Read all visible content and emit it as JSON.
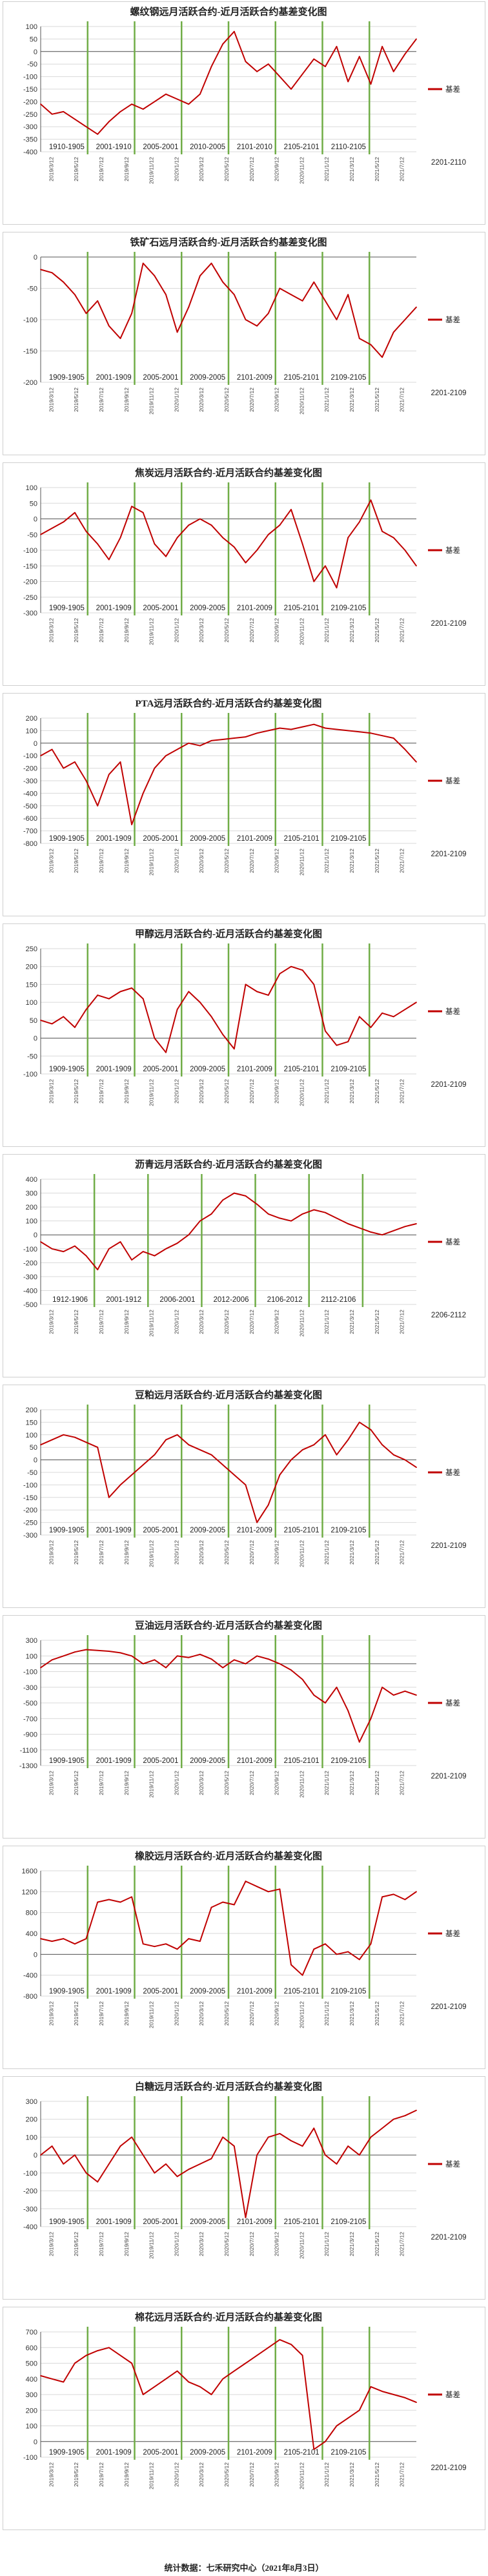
{
  "colors": {
    "series": "#c00000",
    "marker": "#70ad47",
    "grid": "#d9d9d9",
    "axis": "#555555"
  },
  "footer": "统计数据：七禾研究中心（2021年8月3日）",
  "chart_data": [
    {
      "type": "line",
      "title": "螺纹钢远月活跃合约-近月活跃合约基差变化图",
      "legend": "基差",
      "ylim": [
        -400,
        100
      ],
      "ystep": 50,
      "ylabels": [
        "-400",
        "-350",
        "-300",
        "-250",
        "-200",
        "-150",
        "-100",
        "-50",
        "0",
        "50",
        "100"
      ],
      "periods": [
        "1910-1905",
        "2001-1910",
        "2005-2001",
        "2010-2005",
        "2101-2010",
        "2105-2101",
        "2110-2105"
      ],
      "tail_label": "2201-2110",
      "x_dates": [
        "2019/3/12",
        "2019/5/12",
        "2019/7/12",
        "2019/9/12",
        "2019/11/12",
        "2020/1/12",
        "2020/3/12",
        "2020/5/12",
        "2020/7/12",
        "2020/9/12",
        "2020/11/12",
        "2021/1/12",
        "2021/3/12",
        "2021/5/12",
        "2021/7/12"
      ],
      "x": [
        0,
        3,
        6,
        9,
        12,
        15,
        18,
        21,
        24,
        27,
        30,
        33,
        36,
        39,
        42,
        45,
        48,
        51,
        54,
        57,
        60,
        63,
        66,
        69,
        72,
        75,
        78,
        81,
        84,
        87,
        90,
        93,
        96,
        99
      ],
      "values": [
        -210,
        -250,
        -240,
        -270,
        -300,
        -330,
        -280,
        -240,
        -210,
        -230,
        -200,
        -170,
        -190,
        -210,
        -170,
        -60,
        30,
        80,
        -40,
        -80,
        -50,
        -100,
        -150,
        -90,
        -30,
        -60,
        20,
        -120,
        -20,
        -130,
        20,
        -80,
        -10,
        50
      ]
    },
    {
      "type": "line",
      "title": "铁矿石远月活跃合约-近月活跃合约基差变化图",
      "legend": "基差",
      "ylim": [
        -200,
        0
      ],
      "ystep": 50,
      "ylabels": [
        "-200",
        "-150",
        "-100",
        "-50",
        "0"
      ],
      "periods": [
        "1909-1905",
        "2001-1909",
        "2005-2001",
        "2009-2005",
        "2101-2009",
        "2105-2101",
        "2109-2105"
      ],
      "tail_label": "2201-2109",
      "x_dates": [
        "2019/3/12",
        "2019/5/12",
        "2019/7/12",
        "2019/9/12",
        "2019/11/12",
        "2020/1/12",
        "2020/3/12",
        "2020/5/12",
        "2020/7/12",
        "2020/9/12",
        "2020/11/12",
        "2021/1/12",
        "2021/3/12",
        "2021/5/12",
        "2021/7/12"
      ],
      "x": [
        0,
        3,
        6,
        9,
        12,
        15,
        18,
        21,
        24,
        27,
        30,
        33,
        36,
        39,
        42,
        45,
        48,
        51,
        54,
        57,
        60,
        63,
        66,
        69,
        72,
        75,
        78,
        81,
        84,
        87,
        90,
        93,
        96,
        99
      ],
      "values": [
        -20,
        -25,
        -40,
        -60,
        -90,
        -70,
        -110,
        -130,
        -90,
        -10,
        -30,
        -60,
        -120,
        -80,
        -30,
        -10,
        -40,
        -60,
        -100,
        -110,
        -90,
        -50,
        -60,
        -70,
        -40,
        -70,
        -100,
        -60,
        -130,
        -140,
        -160,
        -120,
        -100,
        -80
      ]
    },
    {
      "type": "line",
      "title": "焦炭远月活跃合约-近月活跃合约基差变化图",
      "legend": "基差",
      "ylim": [
        -300,
        100
      ],
      "ystep": 50,
      "ylabels": [
        "-300",
        "-250",
        "-200",
        "-150",
        "-100",
        "-50",
        "0",
        "50",
        "100"
      ],
      "periods": [
        "1909-1905",
        "2001-1909",
        "2005-2001",
        "2009-2005",
        "2101-2009",
        "2105-2101",
        "2109-2105"
      ],
      "tail_label": "2201-2109",
      "x_dates": [
        "2019/3/12",
        "2019/5/12",
        "2019/7/12",
        "2019/9/12",
        "2019/11/12",
        "2020/1/12",
        "2020/3/12",
        "2020/5/12",
        "2020/7/12",
        "2020/9/12",
        "2020/11/12",
        "2021/1/12",
        "2021/3/12",
        "2021/5/12",
        "2021/7/12"
      ],
      "x": [
        0,
        3,
        6,
        9,
        12,
        15,
        18,
        21,
        24,
        27,
        30,
        33,
        36,
        39,
        42,
        45,
        48,
        51,
        54,
        57,
        60,
        63,
        66,
        69,
        72,
        75,
        78,
        81,
        84,
        87,
        90,
        93,
        96,
        99
      ],
      "values": [
        -50,
        -30,
        -10,
        20,
        -40,
        -80,
        -130,
        -60,
        40,
        20,
        -80,
        -120,
        -60,
        -20,
        0,
        -20,
        -60,
        -90,
        -140,
        -100,
        -50,
        -20,
        30,
        -80,
        -200,
        -150,
        -220,
        -60,
        -10,
        60,
        -40,
        -60,
        -100,
        -150
      ]
    },
    {
      "type": "line",
      "title": "PTA远月活跃合约-近月活跃合约基差变化图",
      "legend": "基差",
      "ylim": [
        -800,
        200
      ],
      "ystep": 100,
      "ylabels": [
        "-800",
        "-700",
        "-600",
        "-500",
        "-400",
        "-300",
        "-200",
        "-100",
        "0",
        "100",
        "200"
      ],
      "periods": [
        "1909-1905",
        "2001-1909",
        "2005-2001",
        "2009-2005",
        "2101-2009",
        "2105-2101",
        "2109-2105"
      ],
      "tail_label": "2201-2109",
      "x_dates": [
        "2019/3/12",
        "2019/5/12",
        "2019/7/12",
        "2019/9/12",
        "2019/11/12",
        "2020/1/12",
        "2020/3/12",
        "2020/5/12",
        "2020/7/12",
        "2020/9/12",
        "2020/11/12",
        "2021/1/12",
        "2021/3/12",
        "2021/5/12",
        "2021/7/12"
      ],
      "x": [
        0,
        3,
        6,
        9,
        12,
        15,
        18,
        21,
        24,
        27,
        30,
        33,
        36,
        39,
        42,
        45,
        48,
        51,
        54,
        57,
        60,
        63,
        66,
        69,
        72,
        75,
        78,
        81,
        84,
        87,
        90,
        93,
        96,
        99
      ],
      "values": [
        -100,
        -50,
        -200,
        -150,
        -300,
        -500,
        -250,
        -150,
        -650,
        -400,
        -200,
        -100,
        -50,
        0,
        -20,
        20,
        30,
        40,
        50,
        80,
        100,
        120,
        110,
        130,
        150,
        120,
        110,
        100,
        90,
        80,
        60,
        40,
        -50,
        -150
      ]
    },
    {
      "type": "line",
      "title": "甲醇远月活跃合约-近月活跃合约基差变化图",
      "legend": "基差",
      "ylim": [
        -100,
        250
      ],
      "ystep": 50,
      "ylabels": [
        "-100",
        "-50",
        "0",
        "50",
        "100",
        "150",
        "200",
        "250"
      ],
      "periods": [
        "1909-1905",
        "2001-1909",
        "2005-2001",
        "2009-2005",
        "2101-2009",
        "2105-2101",
        "2109-2105"
      ],
      "tail_label": "2201-2109",
      "x_dates": [
        "2019/3/12",
        "2019/5/12",
        "2019/7/12",
        "2019/9/12",
        "2019/11/12",
        "2020/1/12",
        "2020/3/12",
        "2020/5/12",
        "2020/7/12",
        "2020/9/12",
        "2020/11/12",
        "2021/1/12",
        "2021/3/12",
        "2021/5/12",
        "2021/7/12"
      ],
      "x": [
        0,
        3,
        6,
        9,
        12,
        15,
        18,
        21,
        24,
        27,
        30,
        33,
        36,
        39,
        42,
        45,
        48,
        51,
        54,
        57,
        60,
        63,
        66,
        69,
        72,
        75,
        78,
        81,
        84,
        87,
        90,
        93,
        96,
        99
      ],
      "values": [
        50,
        40,
        60,
        30,
        80,
        120,
        110,
        130,
        140,
        110,
        0,
        -40,
        80,
        130,
        100,
        60,
        10,
        -30,
        150,
        130,
        120,
        180,
        200,
        190,
        150,
        20,
        -20,
        -10,
        60,
        30,
        70,
        60,
        80,
        100
      ]
    },
    {
      "type": "line",
      "title": "沥青远月活跃合约-近月活跃合约基差变化图",
      "legend": "基差",
      "ylim": [
        -500,
        400
      ],
      "ystep": 100,
      "ylabels": [
        "-500",
        "-400",
        "-300",
        "-200",
        "-100",
        "0",
        "100",
        "200",
        "300",
        "400"
      ],
      "periods": [
        "1912-1906",
        "2001-1912",
        "2006-2001",
        "2012-2006",
        "2106-2012",
        "2112-2106"
      ],
      "tail_label": "2206-2112",
      "x_dates": [
        "2019/3/12",
        "2019/5/12",
        "2019/7/12",
        "2019/9/12",
        "2019/11/12",
        "2020/1/12",
        "2020/3/12",
        "2020/5/12",
        "2020/7/12",
        "2020/9/12",
        "2020/11/12",
        "2021/1/12",
        "2021/3/12",
        "2021/5/12",
        "2021/7/12"
      ],
      "x": [
        0,
        3,
        6,
        9,
        12,
        15,
        18,
        21,
        24,
        27,
        30,
        33,
        36,
        39,
        42,
        45,
        48,
        51,
        54,
        57,
        60,
        63,
        66,
        69,
        72,
        75,
        78,
        81,
        84,
        87,
        90,
        93,
        96,
        99
      ],
      "values": [
        -50,
        -100,
        -120,
        -80,
        -150,
        -250,
        -100,
        -50,
        -180,
        -120,
        -150,
        -100,
        -60,
        0,
        100,
        150,
        250,
        300,
        280,
        220,
        150,
        120,
        100,
        150,
        180,
        160,
        120,
        80,
        50,
        20,
        0,
        30,
        60,
        80
      ]
    },
    {
      "type": "line",
      "title": "豆粕远月活跃合约-近月活跃合约基差变化图",
      "legend": "基差",
      "ylim": [
        -300,
        200
      ],
      "ystep": 50,
      "ylabels": [
        "-300",
        "-250",
        "-200",
        "-150",
        "-100",
        "-50",
        "0",
        "50",
        "100",
        "150",
        "200"
      ],
      "periods": [
        "1909-1905",
        "2001-1909",
        "2005-2001",
        "2009-2005",
        "2101-2009",
        "2105-2101",
        "2109-2105"
      ],
      "tail_label": "2201-2109",
      "x_dates": [
        "2019/3/12",
        "2019/5/12",
        "2019/7/12",
        "2019/9/12",
        "2019/11/12",
        "2020/1/12",
        "2020/3/12",
        "2020/5/12",
        "2020/7/12",
        "2020/9/12",
        "2020/11/12",
        "2021/1/12",
        "2021/3/12",
        "2021/5/12",
        "2021/7/12"
      ],
      "x": [
        0,
        3,
        6,
        9,
        12,
        15,
        18,
        21,
        24,
        27,
        30,
        33,
        36,
        39,
        42,
        45,
        48,
        51,
        54,
        57,
        60,
        63,
        66,
        69,
        72,
        75,
        78,
        81,
        84,
        87,
        90,
        93,
        96,
        99
      ],
      "values": [
        60,
        80,
        100,
        90,
        70,
        50,
        -150,
        -100,
        -60,
        -20,
        20,
        80,
        100,
        60,
        40,
        20,
        -20,
        -60,
        -100,
        -250,
        -180,
        -60,
        0,
        40,
        60,
        100,
        20,
        80,
        150,
        120,
        60,
        20,
        0,
        -30
      ]
    },
    {
      "type": "line",
      "title": "豆油远月活跃合约-近月活跃合约基差变化图",
      "legend": "基差",
      "ylim": [
        -1300,
        300
      ],
      "ystep": 200,
      "ylabels": [
        "-1300",
        "-1100",
        "-900",
        "-700",
        "-500",
        "-300",
        "-100",
        "100",
        "300"
      ],
      "periods": [
        "1909-1905",
        "2001-1909",
        "2005-2001",
        "2009-2005",
        "2101-2009",
        "2105-2101",
        "2109-2105"
      ],
      "tail_label": "2201-2109",
      "x_dates": [
        "2019/3/12",
        "2019/5/12",
        "2019/7/12",
        "2019/9/12",
        "2019/11/12",
        "2020/1/12",
        "2020/3/12",
        "2020/5/12",
        "2020/7/12",
        "2020/9/12",
        "2020/11/12",
        "2021/1/12",
        "2021/3/12",
        "2021/5/12",
        "2021/7/12"
      ],
      "x": [
        0,
        3,
        6,
        9,
        12,
        15,
        18,
        21,
        24,
        27,
        30,
        33,
        36,
        39,
        42,
        45,
        48,
        51,
        54,
        57,
        60,
        63,
        66,
        69,
        72,
        75,
        78,
        81,
        84,
        87,
        90,
        93,
        96,
        99
      ],
      "values": [
        -50,
        50,
        100,
        150,
        180,
        170,
        160,
        140,
        100,
        0,
        50,
        -50,
        100,
        80,
        120,
        60,
        -50,
        50,
        0,
        100,
        60,
        0,
        -80,
        -200,
        -400,
        -500,
        -300,
        -600,
        -1000,
        -700,
        -300,
        -400,
        -350,
        -400
      ]
    },
    {
      "type": "line",
      "title": "橡胶远月活跃合约-近月活跃合约基差变化图",
      "legend": "基差",
      "ylim": [
        -800,
        1600
      ],
      "ystep": 400,
      "ylabels": [
        "-800",
        "-400",
        "0",
        "400",
        "800",
        "1200",
        "1600"
      ],
      "periods": [
        "1909-1905",
        "2001-1909",
        "2005-2001",
        "2009-2005",
        "2101-2009",
        "2105-2101",
        "2109-2105"
      ],
      "tail_label": "2201-2109",
      "x_dates": [
        "2019/3/12",
        "2019/5/12",
        "2019/7/12",
        "2019/9/12",
        "2019/11/12",
        "2020/1/12",
        "2020/3/12",
        "2020/5/12",
        "2020/7/12",
        "2020/9/12",
        "2020/11/12",
        "2021/1/12",
        "2021/3/12",
        "2021/5/12",
        "2021/7/12"
      ],
      "x": [
        0,
        3,
        6,
        9,
        12,
        15,
        18,
        21,
        24,
        27,
        30,
        33,
        36,
        39,
        42,
        45,
        48,
        51,
        54,
        57,
        60,
        63,
        66,
        69,
        72,
        75,
        78,
        81,
        84,
        87,
        90,
        93,
        96,
        99
      ],
      "values": [
        300,
        250,
        300,
        200,
        300,
        1000,
        1050,
        1000,
        1100,
        200,
        150,
        200,
        100,
        300,
        250,
        900,
        1000,
        950,
        1400,
        1300,
        1200,
        1250,
        -200,
        -400,
        100,
        200,
        0,
        50,
        -100,
        200,
        1100,
        1150,
        1050,
        1200
      ]
    },
    {
      "type": "line",
      "title": "白糖远月活跃合约-近月活跃合约基差变化图",
      "legend": "基差",
      "ylim": [
        -400,
        300
      ],
      "ystep": 100,
      "ylabels": [
        "-400",
        "-300",
        "-200",
        "-100",
        "0",
        "100",
        "200",
        "300"
      ],
      "periods": [
        "1909-1905",
        "2001-1909",
        "2005-2001",
        "2009-2005",
        "2101-2009",
        "2105-2101",
        "2109-2105"
      ],
      "tail_label": "2201-2109",
      "x_dates": [
        "2019/3/12",
        "2019/5/12",
        "2019/7/12",
        "2019/9/12",
        "2019/11/12",
        "2020/1/12",
        "2020/3/12",
        "2020/5/12",
        "2020/7/12",
        "2020/9/12",
        "2020/11/12",
        "2021/1/12",
        "2021/3/12",
        "2021/5/12",
        "2021/7/12"
      ],
      "x": [
        0,
        3,
        6,
        9,
        12,
        15,
        18,
        21,
        24,
        27,
        30,
        33,
        36,
        39,
        42,
        45,
        48,
        51,
        54,
        57,
        60,
        63,
        66,
        69,
        72,
        75,
        78,
        81,
        84,
        87,
        90,
        93,
        96,
        99
      ],
      "values": [
        0,
        50,
        -50,
        0,
        -100,
        -150,
        -50,
        50,
        100,
        0,
        -100,
        -50,
        -120,
        -80,
        -50,
        -20,
        100,
        50,
        -350,
        0,
        100,
        120,
        80,
        50,
        150,
        0,
        -50,
        50,
        0,
        100,
        150,
        200,
        220,
        250
      ]
    },
    {
      "type": "line",
      "title": "棉花远月活跃合约-近月活跃合约基差变化图",
      "legend": "基差",
      "ylim": [
        -100,
        700
      ],
      "ystep": 100,
      "ylabels": [
        "-100",
        "0",
        "100",
        "200",
        "300",
        "400",
        "500",
        "600",
        "700"
      ],
      "periods": [
        "1909-1905",
        "2001-1909",
        "2005-2001",
        "2009-2005",
        "2101-2009",
        "2105-2101",
        "2109-2105"
      ],
      "tail_label": "2201-2109",
      "x_dates": [
        "2019/3/12",
        "2019/5/12",
        "2019/7/12",
        "2019/9/12",
        "2019/11/12",
        "2020/1/12",
        "2020/3/12",
        "2020/5/12",
        "2020/7/12",
        "2020/9/12",
        "2020/11/12",
        "2021/1/12",
        "2021/3/12",
        "2021/5/12",
        "2021/7/12"
      ],
      "x": [
        0,
        3,
        6,
        9,
        12,
        15,
        18,
        21,
        24,
        27,
        30,
        33,
        36,
        39,
        42,
        45,
        48,
        51,
        54,
        57,
        60,
        63,
        66,
        69,
        72,
        75,
        78,
        81,
        84,
        87,
        90,
        93,
        96,
        99
      ],
      "values": [
        420,
        400,
        380,
        500,
        550,
        580,
        600,
        550,
        500,
        300,
        350,
        400,
        450,
        380,
        350,
        300,
        400,
        450,
        500,
        550,
        600,
        650,
        620,
        550,
        -50,
        0,
        100,
        150,
        200,
        350,
        320,
        300,
        280,
        250
      ]
    }
  ]
}
